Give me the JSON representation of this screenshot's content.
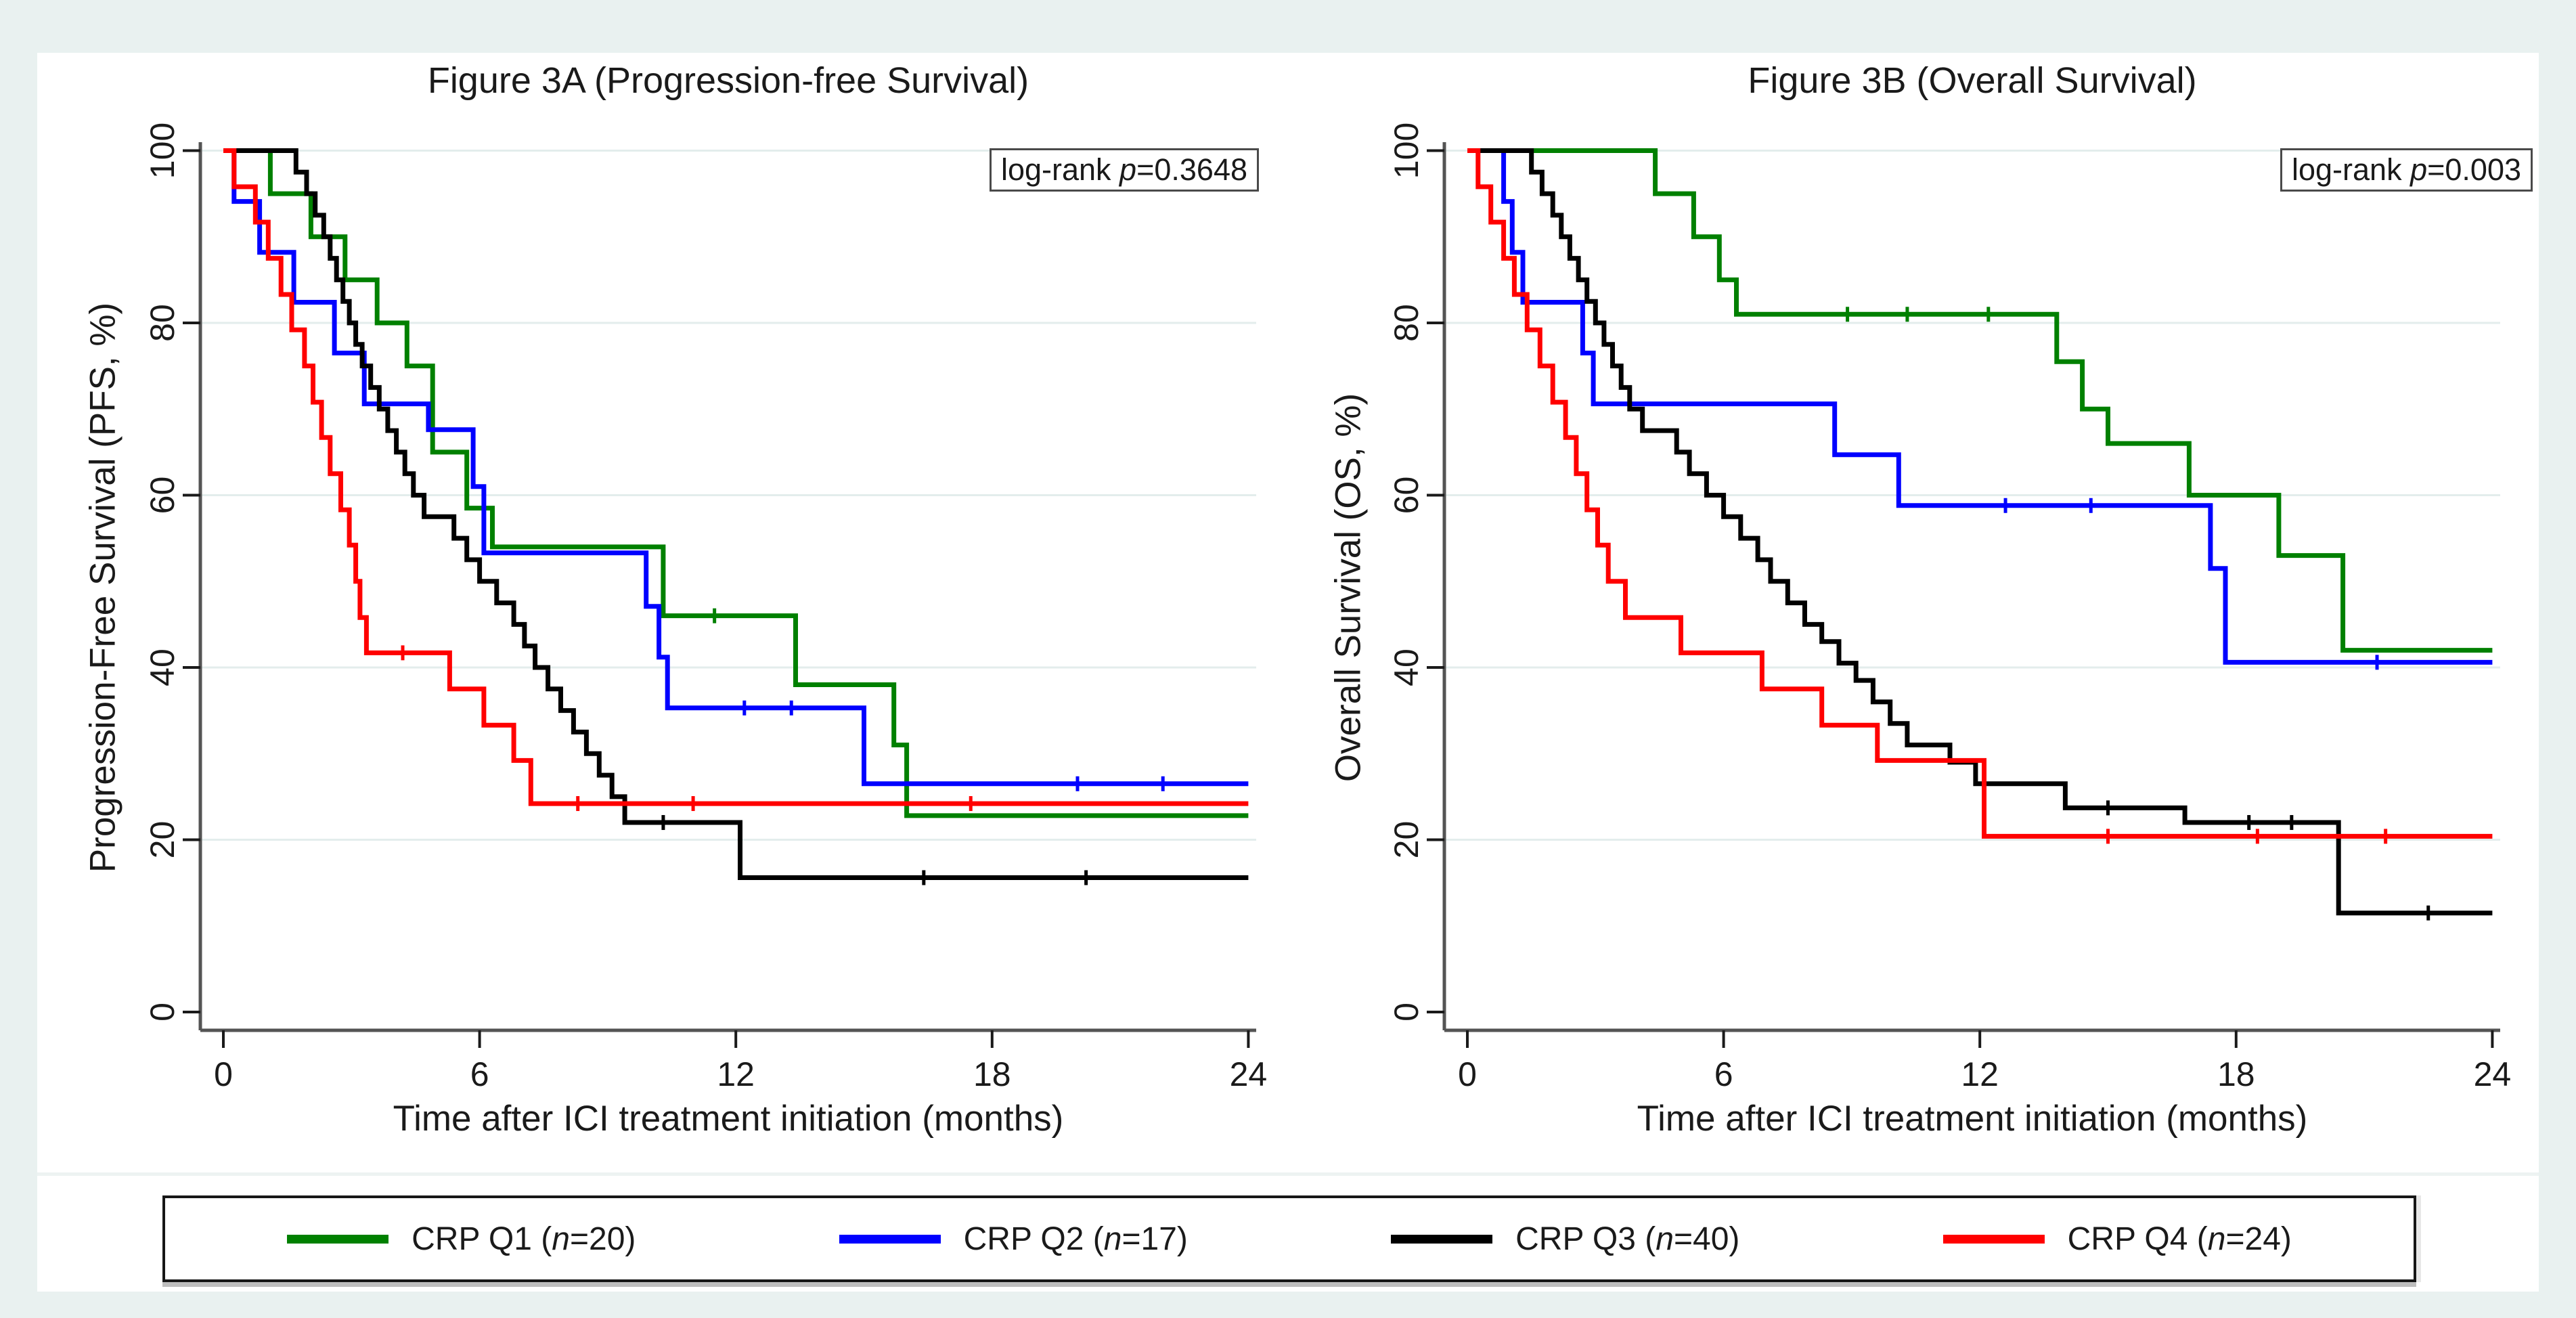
{
  "page": {
    "background": "#e9f1f0",
    "plot_background": "#ffffff"
  },
  "panels": [
    {
      "title": "Figure 3A (Progression-free Survival)",
      "pbox": {
        "pre": "log-rank ",
        "p": "p",
        "val": "=0.3648"
      },
      "ylabel": "Progression-Free Survival (PFS, %)",
      "xlabel": "Time after ICI treatment initiation (months)"
    },
    {
      "title": "Figure 3B (Overall Survival)",
      "pbox": {
        "pre": "log-rank ",
        "p": "p",
        "val": "=0.003"
      },
      "ylabel": "Overall Survival (OS, %)",
      "xlabel": "Time after ICI treatment initiation (months)"
    }
  ],
  "legend": {
    "items": [
      {
        "pre": "CRP Q1 (",
        "n": "n",
        "post": "=20)",
        "color": "#008000"
      },
      {
        "pre": "CRP Q2 (",
        "n": "n",
        "post": "=17)",
        "color": "#0000ff"
      },
      {
        "pre": "CRP Q3 (",
        "n": "n",
        "post": "=40)",
        "color": "#000000"
      },
      {
        "pre": "CRP Q4 (",
        "n": "n",
        "post": "=24)",
        "color": "#ff0000"
      }
    ]
  },
  "chart_data": [
    {
      "type": "line",
      "subtype": "kaplan-meier-step",
      "title": "Figure 3A (Progression-free Survival)",
      "xlabel": "Time after ICI treatment initiation (months)",
      "ylabel": "Progression-Free Survival (PFS, %)",
      "annotation": "log-rank p=0.3648",
      "xlim": [
        0,
        24
      ],
      "ylim": [
        0,
        100
      ],
      "xticks": [
        0,
        6,
        12,
        18,
        24
      ],
      "yticks": [
        0,
        20,
        40,
        60,
        80,
        100
      ],
      "grid": "horizontal",
      "legend_position": "bottom-shared",
      "series": [
        {
          "name": "CRP Q1 (n=20)",
          "color": "#008000",
          "points": [
            [
              0,
              100
            ],
            [
              1.1,
              95
            ],
            [
              2.05,
              90
            ],
            [
              2.85,
              85
            ],
            [
              3.6,
              80
            ],
            [
              4.3,
              75
            ],
            [
              4.9,
              65
            ],
            [
              5.7,
              58.5
            ],
            [
              6.3,
              54
            ],
            [
              10.3,
              46
            ],
            [
              13.4,
              38
            ],
            [
              15.7,
              31
            ],
            [
              16.0,
              22.8
            ],
            [
              24,
              22.8
            ]
          ],
          "censors": [
            11.5
          ]
        },
        {
          "name": "CRP Q2 (n=17)",
          "color": "#0000ff",
          "points": [
            [
              0,
              100
            ],
            [
              0.25,
              94.1
            ],
            [
              0.85,
              88.2
            ],
            [
              1.65,
              82.4
            ],
            [
              2.6,
              76.5
            ],
            [
              3.3,
              70.6
            ],
            [
              4.8,
              67.6
            ],
            [
              5.85,
              61
            ],
            [
              6.1,
              53.3
            ],
            [
              9.9,
              47.1
            ],
            [
              10.2,
              41.2
            ],
            [
              10.4,
              35.3
            ],
            [
              15.0,
              26.5
            ],
            [
              24,
              26.5
            ]
          ],
          "censors": [
            12.2,
            13.3,
            20.0,
            22.0
          ]
        },
        {
          "name": "CRP Q3 (n=40)",
          "color": "#000000",
          "points": [
            [
              0,
              100
            ],
            [
              1.7,
              97.5
            ],
            [
              1.95,
              95
            ],
            [
              2.15,
              92.5
            ],
            [
              2.35,
              90
            ],
            [
              2.5,
              87.5
            ],
            [
              2.65,
              85
            ],
            [
              2.8,
              82.5
            ],
            [
              2.95,
              80
            ],
            [
              3.1,
              77.5
            ],
            [
              3.25,
              75
            ],
            [
              3.45,
              72.5
            ],
            [
              3.65,
              70
            ],
            [
              3.85,
              67.5
            ],
            [
              4.05,
              65
            ],
            [
              4.25,
              62.5
            ],
            [
              4.45,
              60
            ],
            [
              4.7,
              57.5
            ],
            [
              5.4,
              55
            ],
            [
              5.7,
              52.5
            ],
            [
              6.0,
              50
            ],
            [
              6.4,
              47.5
            ],
            [
              6.8,
              45
            ],
            [
              7.05,
              42.5
            ],
            [
              7.3,
              40
            ],
            [
              7.6,
              37.5
            ],
            [
              7.9,
              35
            ],
            [
              8.2,
              32.5
            ],
            [
              8.5,
              30
            ],
            [
              8.8,
              27.5
            ],
            [
              9.1,
              25
            ],
            [
              9.4,
              22
            ],
            [
              12.1,
              15.6
            ],
            [
              24,
              15.6
            ]
          ],
          "censors": [
            10.3,
            16.4,
            20.2
          ]
        },
        {
          "name": "CRP Q4 (n=24)",
          "color": "#ff0000",
          "points": [
            [
              0,
              100
            ],
            [
              0.25,
              95.8
            ],
            [
              0.75,
              91.7
            ],
            [
              1.05,
              87.5
            ],
            [
              1.35,
              83.3
            ],
            [
              1.6,
              79.2
            ],
            [
              1.9,
              75
            ],
            [
              2.1,
              70.8
            ],
            [
              2.3,
              66.7
            ],
            [
              2.5,
              62.5
            ],
            [
              2.75,
              58.3
            ],
            [
              2.95,
              54.2
            ],
            [
              3.1,
              50
            ],
            [
              3.2,
              45.8
            ],
            [
              3.35,
              41.7
            ],
            [
              5.3,
              37.5
            ],
            [
              6.1,
              33.3
            ],
            [
              6.8,
              29.2
            ],
            [
              7.2,
              24.2
            ],
            [
              24,
              24.2
            ]
          ],
          "censors": [
            4.2,
            8.3,
            11.0,
            17.5
          ]
        }
      ]
    },
    {
      "type": "line",
      "subtype": "kaplan-meier-step",
      "title": "Figure 3B (Overall Survival)",
      "xlabel": "Time after ICI treatment initiation (months)",
      "ylabel": "Overall Survival (OS, %)",
      "annotation": "log-rank p=0.003",
      "xlim": [
        0,
        24
      ],
      "ylim": [
        0,
        100
      ],
      "xticks": [
        0,
        6,
        12,
        18,
        24
      ],
      "yticks": [
        0,
        20,
        40,
        60,
        80,
        100
      ],
      "grid": "horizontal",
      "legend_position": "bottom-shared",
      "series": [
        {
          "name": "CRP Q1 (n=20)",
          "color": "#008000",
          "points": [
            [
              0,
              100
            ],
            [
              4.4,
              95
            ],
            [
              5.3,
              90
            ],
            [
              5.9,
              85
            ],
            [
              6.3,
              81
            ],
            [
              13.8,
              75.5
            ],
            [
              14.4,
              70
            ],
            [
              15.0,
              66
            ],
            [
              16.9,
              60
            ],
            [
              19.0,
              53
            ],
            [
              20.5,
              42
            ],
            [
              24,
              42
            ]
          ],
          "censors": [
            8.9,
            10.3,
            12.2
          ]
        },
        {
          "name": "CRP Q2 (n=17)",
          "color": "#0000ff",
          "points": [
            [
              0,
              100
            ],
            [
              0.85,
              94.1
            ],
            [
              1.05,
              88.2
            ],
            [
              1.3,
              82.4
            ],
            [
              2.7,
              76.5
            ],
            [
              2.95,
              70.6
            ],
            [
              8.6,
              64.7
            ],
            [
              10.1,
              58.8
            ],
            [
              17.4,
              51.5
            ],
            [
              17.75,
              40.6
            ],
            [
              24,
              40.6
            ]
          ],
          "censors": [
            12.6,
            14.6,
            21.3
          ]
        },
        {
          "name": "CRP Q3 (n=40)",
          "color": "#000000",
          "points": [
            [
              0,
              100
            ],
            [
              1.5,
              97.5
            ],
            [
              1.75,
              95
            ],
            [
              2.0,
              92.5
            ],
            [
              2.2,
              90
            ],
            [
              2.4,
              87.5
            ],
            [
              2.6,
              85
            ],
            [
              2.8,
              82.5
            ],
            [
              3.0,
              80
            ],
            [
              3.2,
              77.5
            ],
            [
              3.4,
              75
            ],
            [
              3.6,
              72.5
            ],
            [
              3.8,
              70
            ],
            [
              4.1,
              67.5
            ],
            [
              4.9,
              65
            ],
            [
              5.2,
              62.5
            ],
            [
              5.6,
              60
            ],
            [
              6.0,
              57.5
            ],
            [
              6.4,
              55
            ],
            [
              6.8,
              52.5
            ],
            [
              7.1,
              50
            ],
            [
              7.5,
              47.5
            ],
            [
              7.9,
              45
            ],
            [
              8.3,
              43
            ],
            [
              8.7,
              40.5
            ],
            [
              9.1,
              38.5
            ],
            [
              9.5,
              36
            ],
            [
              9.9,
              33.5
            ],
            [
              10.3,
              31
            ],
            [
              11.3,
              29
            ],
            [
              11.9,
              26.5
            ],
            [
              14.0,
              23.7
            ],
            [
              16.8,
              22
            ],
            [
              20.4,
              11.5
            ],
            [
              24,
              11.5
            ]
          ],
          "censors": [
            15.0,
            18.3,
            19.3,
            22.5
          ]
        },
        {
          "name": "CRP Q4 (n=24)",
          "color": "#ff0000",
          "points": [
            [
              0,
              100
            ],
            [
              0.25,
              95.8
            ],
            [
              0.55,
              91.7
            ],
            [
              0.85,
              87.5
            ],
            [
              1.1,
              83.3
            ],
            [
              1.4,
              79.2
            ],
            [
              1.7,
              75
            ],
            [
              2.0,
              70.8
            ],
            [
              2.3,
              66.7
            ],
            [
              2.55,
              62.5
            ],
            [
              2.8,
              58.3
            ],
            [
              3.05,
              54.2
            ],
            [
              3.3,
              50
            ],
            [
              3.7,
              45.8
            ],
            [
              5.0,
              41.7
            ],
            [
              6.9,
              37.5
            ],
            [
              8.3,
              33.3
            ],
            [
              9.6,
              29.2
            ],
            [
              12.1,
              20.4
            ],
            [
              24,
              20.4
            ]
          ],
          "censors": [
            15.0,
            18.5,
            21.5
          ]
        }
      ]
    }
  ]
}
